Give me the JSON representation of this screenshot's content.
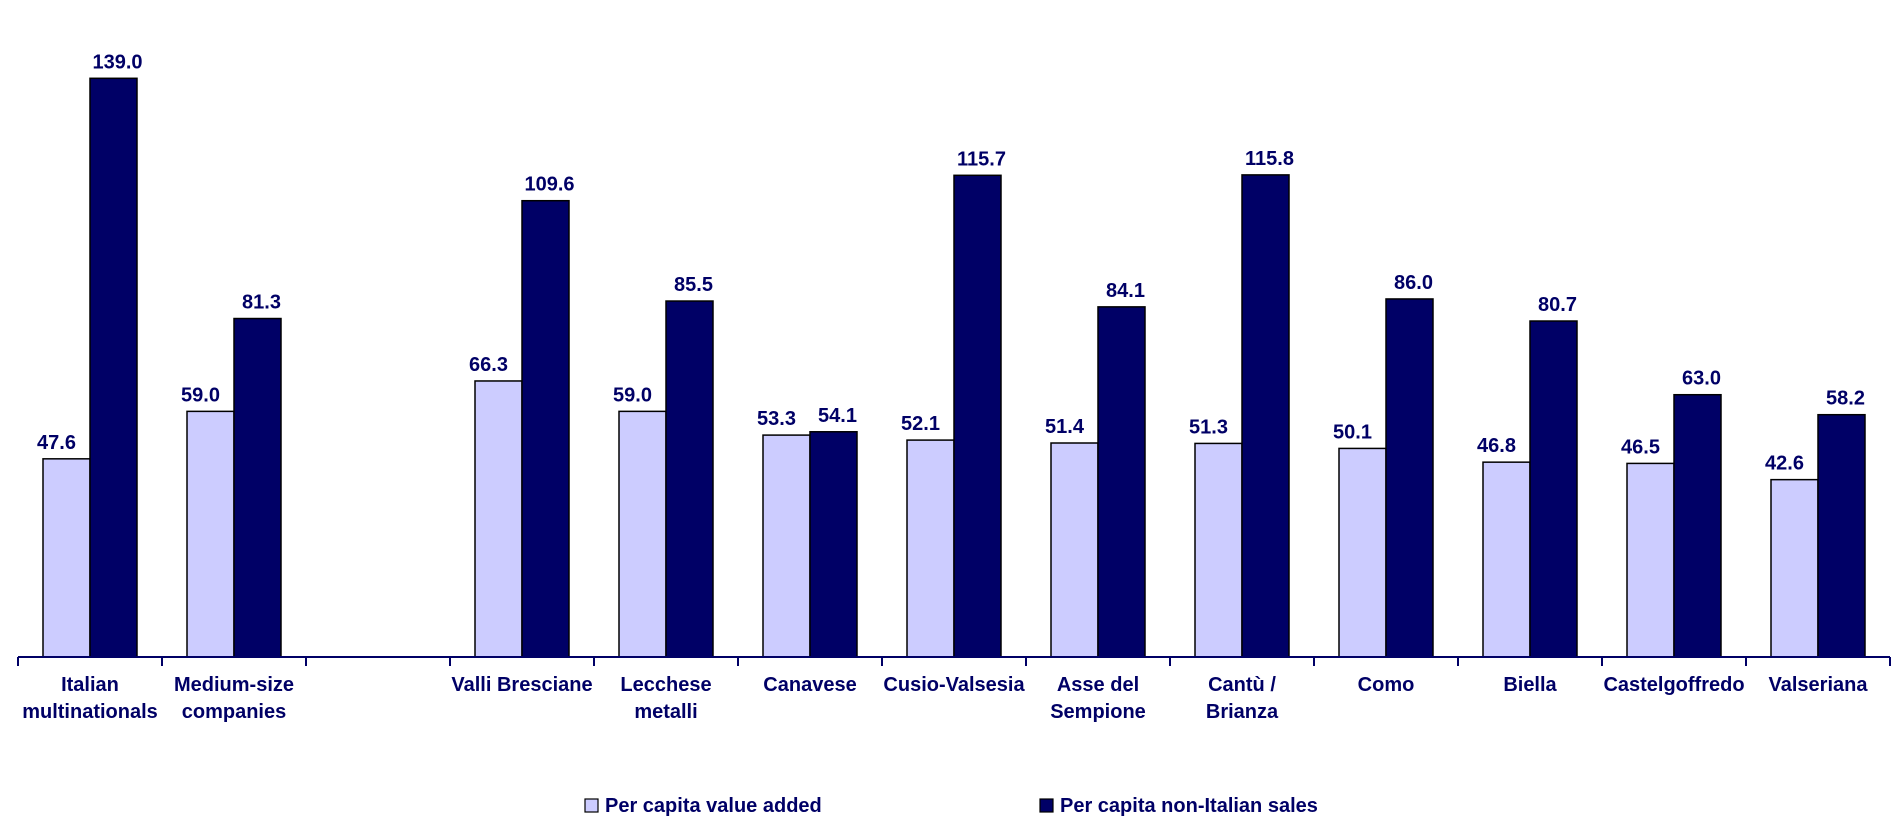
{
  "chart_data": {
    "type": "bar",
    "categories": [
      [
        "Italian",
        "multinationals"
      ],
      [
        "Medium-size",
        "companies"
      ],
      [
        ""
      ],
      [
        "Valli Bresciane"
      ],
      [
        "Lecchese",
        "metalli"
      ],
      [
        "Canavese"
      ],
      [
        "Cusio-Valsesia"
      ],
      [
        "Asse del",
        "Sempione"
      ],
      [
        "Cantù /",
        "Brianza"
      ],
      [
        "Como"
      ],
      [
        "Biella"
      ],
      [
        "Castelgoffredo"
      ],
      [
        "Valseriana"
      ]
    ],
    "series": [
      {
        "name": "Per capita value added",
        "color": "#ccccff",
        "values": [
          47.6,
          59.0,
          null,
          66.3,
          59.0,
          53.3,
          52.1,
          51.4,
          51.3,
          50.1,
          46.8,
          46.5,
          42.6
        ],
        "labels": [
          "47.6",
          "59.0",
          null,
          "66.3",
          "59.0",
          "53.3",
          "52.1",
          "51.4",
          "51.3",
          "50.1",
          "46.8",
          "46.5",
          "42.6"
        ]
      },
      {
        "name": "Per capita non-Italian sales",
        "color": "#000066",
        "values": [
          139.0,
          81.3,
          null,
          109.6,
          85.5,
          54.1,
          115.7,
          84.1,
          115.8,
          86.0,
          80.7,
          63.0,
          58.2
        ],
        "labels": [
          "139.0",
          "81.3",
          null,
          "109.6",
          "85.5",
          "54.1",
          "115.7",
          "84.1",
          "115.8",
          "86.0",
          "80.7",
          "63.0",
          "58.2"
        ]
      }
    ],
    "ylim": [
      0,
      145
    ],
    "grid": false,
    "legend_position": "bottom",
    "axis_color": "#000066",
    "text_color": "#000066"
  }
}
